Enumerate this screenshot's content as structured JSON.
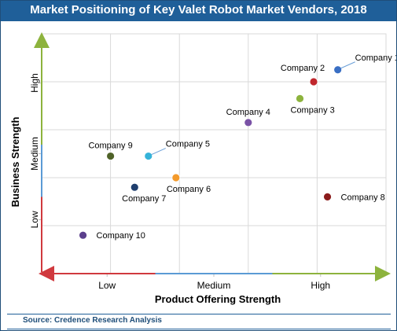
{
  "chart_data": {
    "type": "scatter",
    "title": "Market Positioning of Key Valet Robot Market Vendors, 2018",
    "xlabel": "Product Offering Strength",
    "ylabel": "Business Strength",
    "x_levels": [
      "Low",
      "Medium",
      "High"
    ],
    "y_levels": [
      "Low",
      "Medium",
      "High"
    ],
    "xlim": [
      0,
      10
    ],
    "ylim": [
      0,
      10
    ],
    "grid": true,
    "points": [
      {
        "name": "Company 1",
        "x": 8.6,
        "y": 8.5,
        "color": "#3a6fc4",
        "label_pos": "right-callout"
      },
      {
        "name": "Company 2",
        "x": 7.9,
        "y": 8.0,
        "color": "#c0272d",
        "label_pos": "above-left"
      },
      {
        "name": "Company 3",
        "x": 7.5,
        "y": 7.3,
        "color": "#8db33d",
        "label_pos": "below-right"
      },
      {
        "name": "Company 4",
        "x": 6.0,
        "y": 6.3,
        "color": "#7a52a6",
        "label_pos": "above"
      },
      {
        "name": "Company 5",
        "x": 3.1,
        "y": 4.9,
        "color": "#35b3d9",
        "label_pos": "right-callout"
      },
      {
        "name": "Company 6",
        "x": 3.9,
        "y": 4.0,
        "color": "#f39a2b",
        "label_pos": "below-right"
      },
      {
        "name": "Company 7",
        "x": 2.7,
        "y": 3.6,
        "color": "#1f3f6e",
        "label_pos": "below"
      },
      {
        "name": "Company 8",
        "x": 8.3,
        "y": 3.2,
        "color": "#8b1c1c",
        "label_pos": "right"
      },
      {
        "name": "Company 9",
        "x": 2.0,
        "y": 4.9,
        "color": "#4f6228",
        "label_pos": "above"
      },
      {
        "name": "Company 10",
        "x": 1.2,
        "y": 1.6,
        "color": "#5b3f8c",
        "label_pos": "right"
      }
    ]
  },
  "source": "Source: Credence Research Analysis"
}
